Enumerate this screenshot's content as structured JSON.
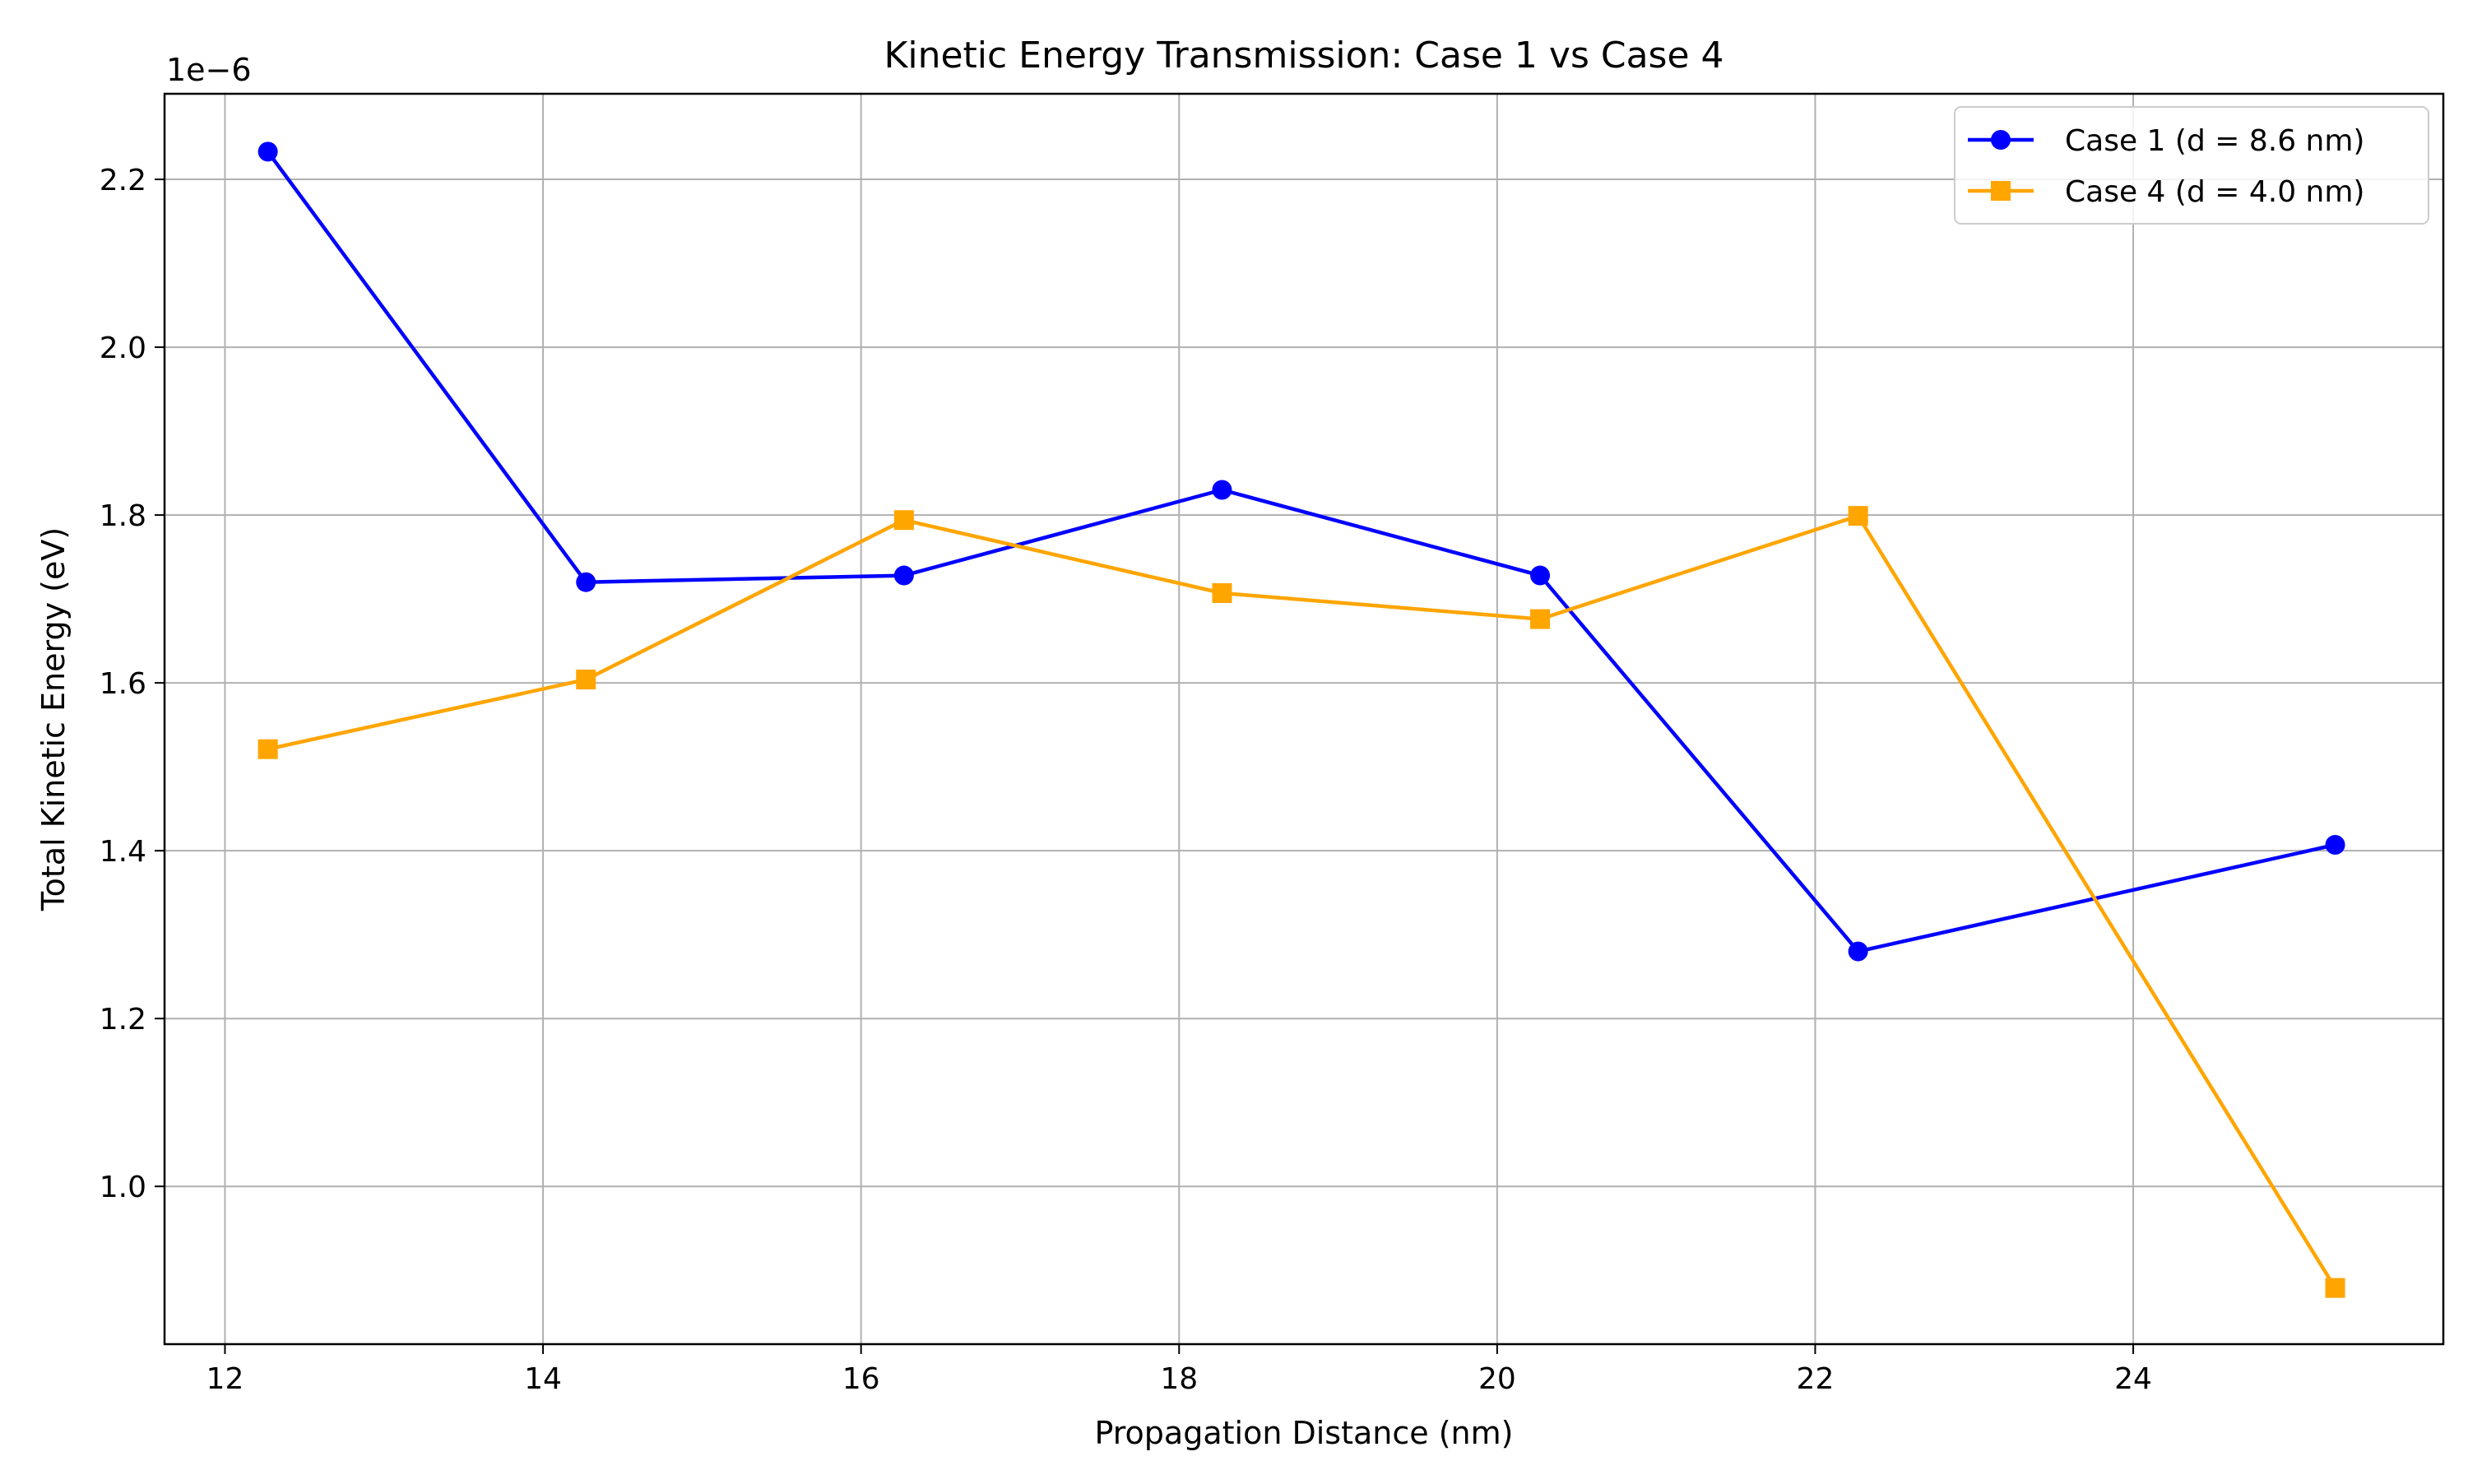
{
  "chart_data": {
    "type": "line",
    "title": "Kinetic Energy Transmission: Case 1 vs Case 4",
    "xlabel": "Propagation Distance (nm)",
    "ylabel": "Total Kinetic Energy (eV)",
    "y_offset_label": "1e−6",
    "xlim": [
      11.62,
      25.95
    ],
    "ylim": [
      0.812,
      2.302
    ],
    "x_ticks": [
      12,
      14,
      16,
      18,
      20,
      22,
      24
    ],
    "x_tick_labels": [
      "12",
      "14",
      "16",
      "18",
      "20",
      "22",
      "24"
    ],
    "y_ticks": [
      1.0,
      1.2,
      1.4,
      1.6,
      1.8,
      2.0,
      2.2
    ],
    "y_tick_labels": [
      "1.0",
      "1.2",
      "1.4",
      "1.6",
      "1.8",
      "2.0",
      "2.2"
    ],
    "grid": true,
    "legend_position": "top-right",
    "series": [
      {
        "name": "Case 1 (d = 8.6 nm)",
        "color": "#0000ff",
        "marker": "circle",
        "x": [
          12.27,
          14.27,
          16.27,
          18.27,
          20.27,
          22.27,
          25.27
        ],
        "y": [
          2.233,
          1.72,
          1.728,
          1.83,
          1.728,
          1.28,
          1.407
        ]
      },
      {
        "name": "Case 4 (d = 4.0 nm)",
        "color": "#ffa500",
        "marker": "square",
        "x": [
          12.27,
          14.27,
          16.27,
          18.27,
          20.27,
          22.27,
          25.27
        ],
        "y": [
          1.521,
          1.604,
          1.794,
          1.707,
          1.676,
          1.799,
          0.879
        ]
      }
    ]
  }
}
